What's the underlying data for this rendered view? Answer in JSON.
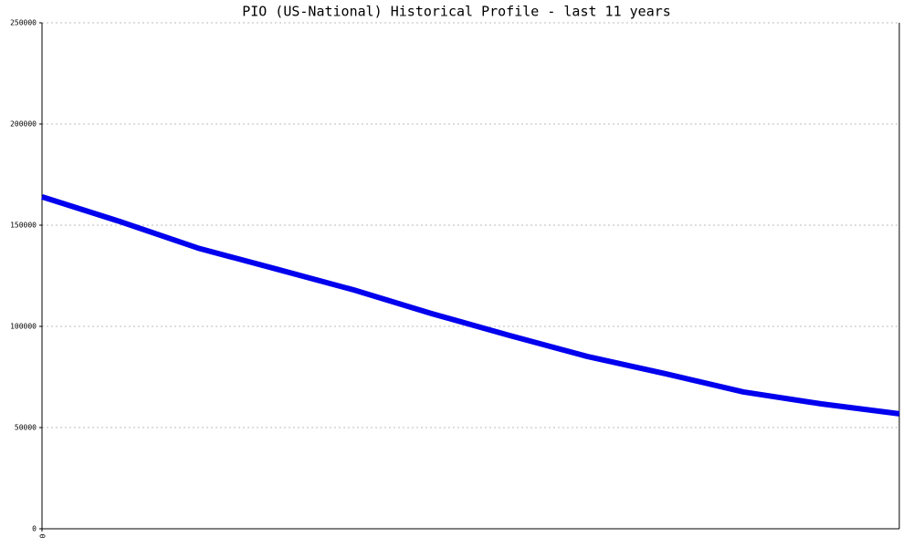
{
  "chart_data": {
    "type": "line",
    "title": "PIO (US-National) Historical Profile - last 11 years",
    "x": [
      0,
      12,
      24,
      36,
      48,
      60,
      72,
      84,
      96,
      108,
      120,
      132
    ],
    "series": [
      {
        "name": "PIO",
        "color": "#0000ee",
        "values": [
          164000,
          151800,
          138700,
          128400,
          118000,
          106300,
          95500,
          85100,
          76600,
          67600,
          61700,
          56800
        ]
      }
    ],
    "xlim": [
      0,
      132
    ],
    "xticks": [
      0
    ],
    "ylim": [
      0,
      250000
    ],
    "yticks": [
      0,
      50000,
      100000,
      150000,
      200000,
      250000
    ],
    "grid": true
  }
}
